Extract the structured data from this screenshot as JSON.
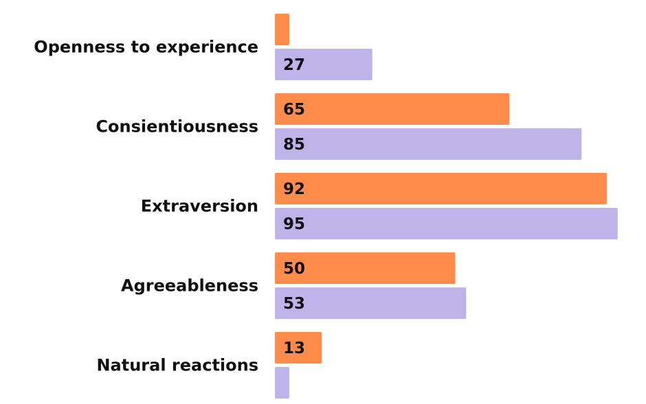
{
  "chart_data": {
    "type": "bar",
    "orientation": "horizontal",
    "categories": [
      "Openness to experience",
      "Consientiousness",
      "Extraversion",
      "Agreeableness",
      "Natural reactions"
    ],
    "series": [
      {
        "values": [
          4,
          65,
          92,
          50,
          13
        ],
        "color": "#FF8C4B"
      },
      {
        "values": [
          27,
          85,
          95,
          53,
          4
        ],
        "color": "#BFB4EA"
      }
    ],
    "xlim": [
      0,
      95
    ],
    "grid": false,
    "legend": "none",
    "title": "",
    "xlabel": "",
    "ylabel": ""
  }
}
